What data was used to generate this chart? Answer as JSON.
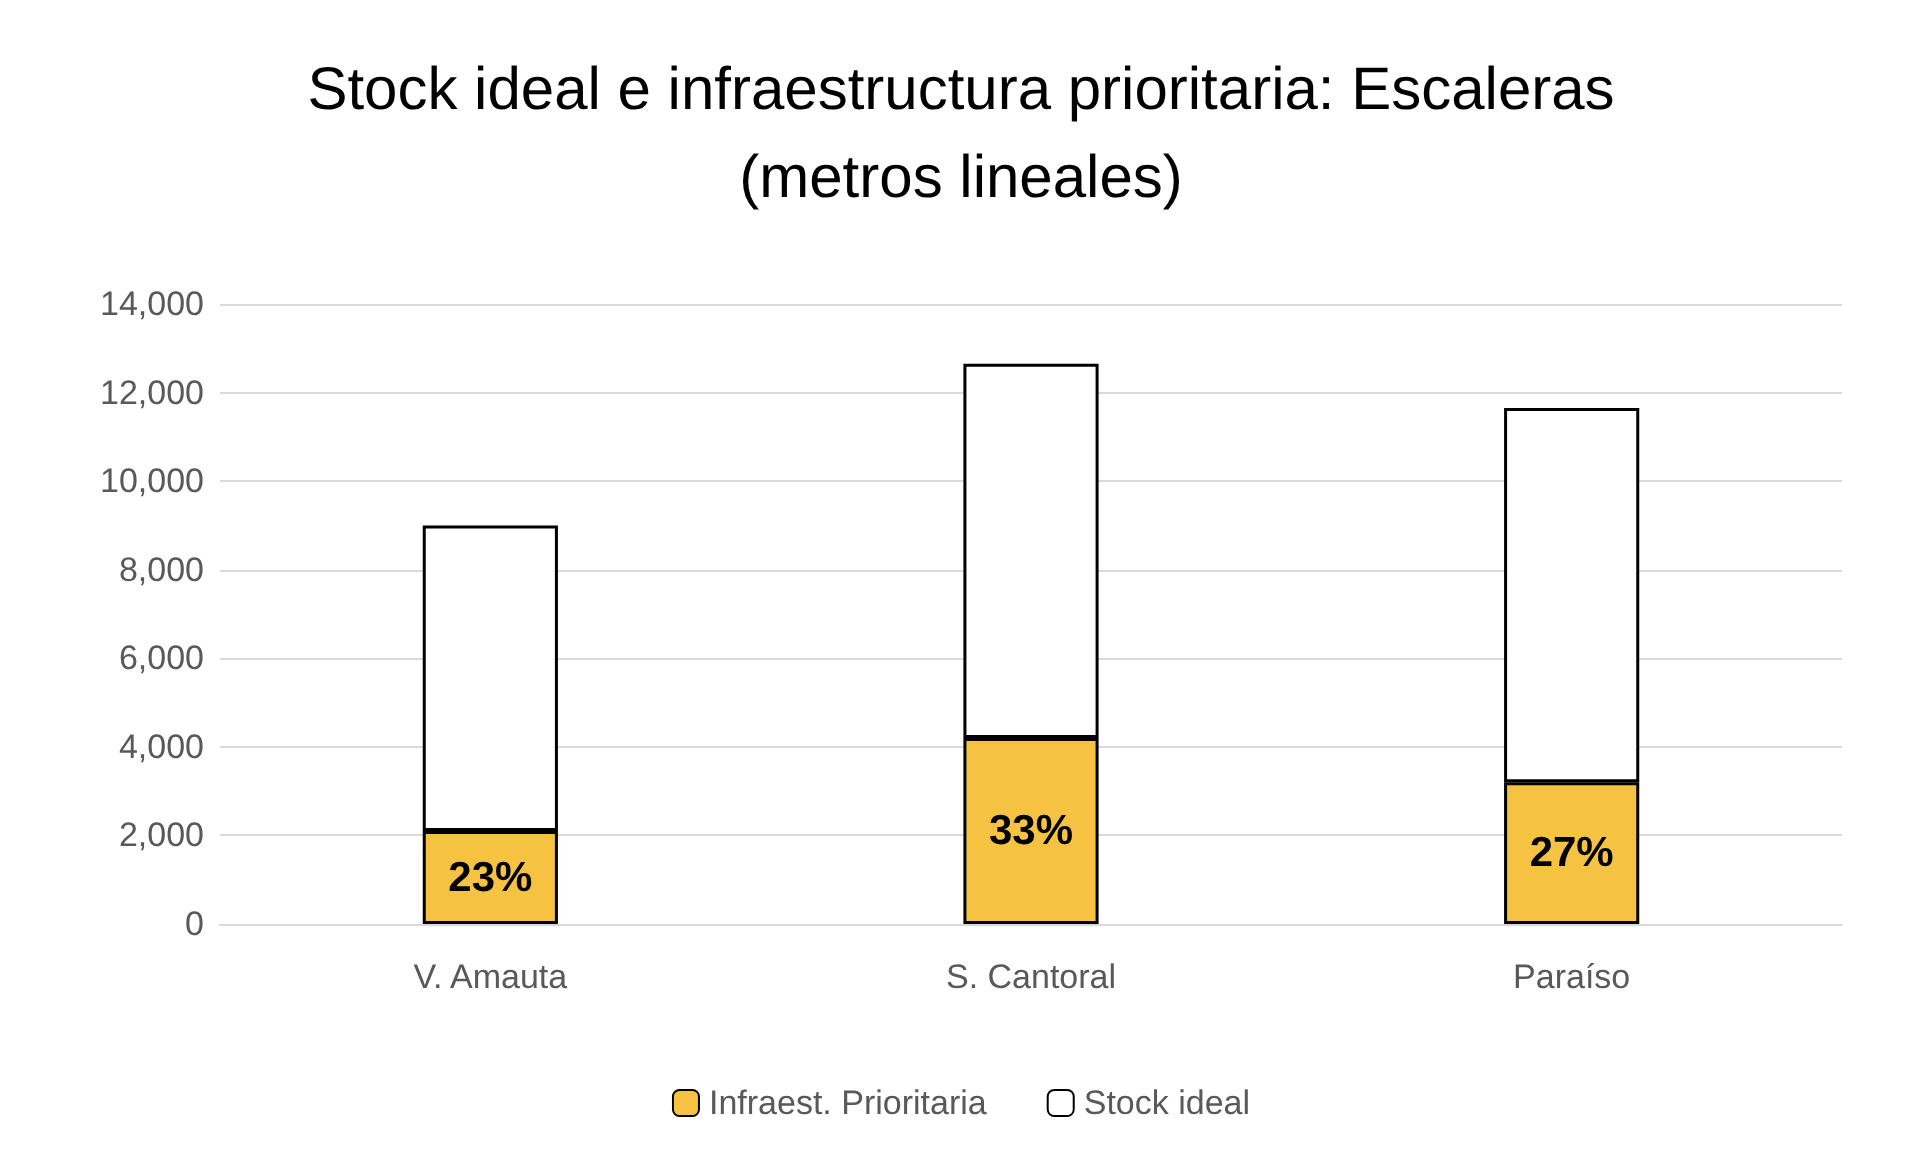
{
  "chart_data": {
    "type": "bar",
    "title": "Stock ideal e infraestructura prioritaria: Escaleras\n(metros lineales)",
    "categories": [
      "V. Amauta",
      "S. Cantoral",
      "Paraíso"
    ],
    "stacked": true,
    "series": [
      {
        "name": "Infraest. Prioritaria",
        "color": "#f5c242",
        "values": [
          2100,
          4200,
          3200
        ]
      },
      {
        "name": "Stock ideal",
        "color": "#ffffff",
        "values": [
          6900,
          8450,
          8450
        ]
      }
    ],
    "ylim": [
      0,
      14000
    ],
    "yticks": [
      {
        "value": 0,
        "label": "0"
      },
      {
        "value": 2000,
        "label": "2,000"
      },
      {
        "value": 4000,
        "label": "4,000"
      },
      {
        "value": 6000,
        "label": "6,000"
      },
      {
        "value": 8000,
        "label": "8,000"
      },
      {
        "value": 10000,
        "label": "10,000"
      },
      {
        "value": 12000,
        "label": "12,000"
      },
      {
        "value": 14000,
        "label": "14,000"
      }
    ],
    "annotations": [
      "23%",
      "33%",
      "27%"
    ],
    "grid": "y",
    "legend": "bottom"
  }
}
